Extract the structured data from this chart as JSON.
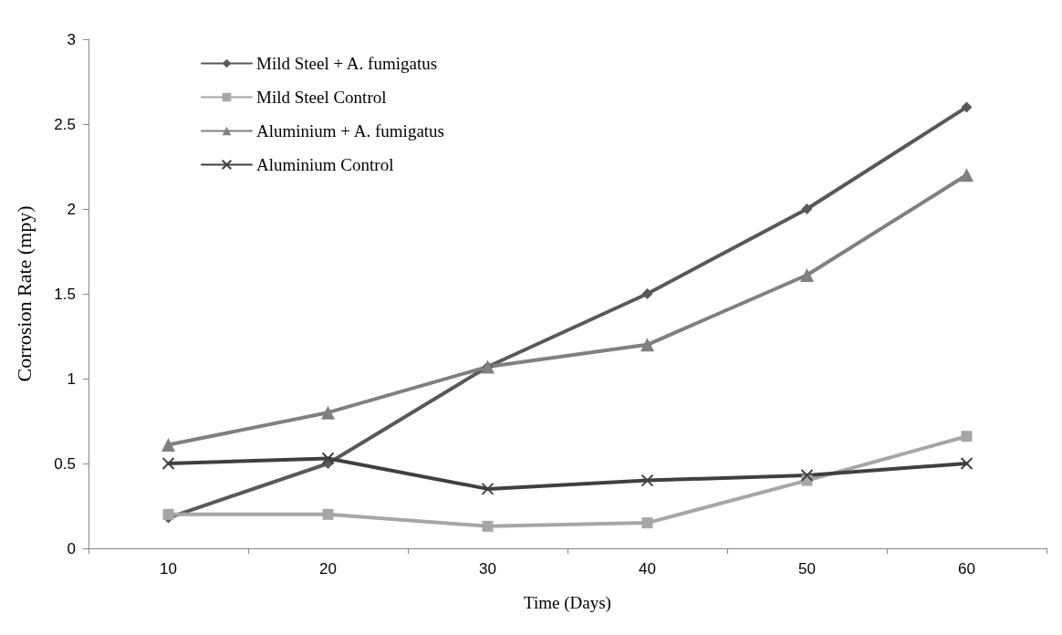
{
  "chart_data": {
    "type": "line",
    "xlabel": "Time (Days)",
    "ylabel": "Corrosion Rate (mpy)",
    "categories": [
      "10",
      "20",
      "30",
      "40",
      "50",
      "60"
    ],
    "ylim": [
      0,
      3
    ],
    "yticks": [
      0,
      0.5,
      1,
      1.5,
      2,
      2.5,
      3
    ],
    "grid": false,
    "legend": "top left",
    "line_style": "solid",
    "series": [
      {
        "name": "Mild Steel + A. fumigatus",
        "color": "#595959",
        "marker": "diamond",
        "values": [
          0.18,
          0.5,
          1.07,
          1.5,
          2.0,
          2.6
        ]
      },
      {
        "name": "Mild Steel Control",
        "color": "#a6a6a6",
        "marker": "square",
        "values": [
          0.2,
          0.2,
          0.13,
          0.15,
          0.4,
          0.66
        ]
      },
      {
        "name": "Aluminium + A. fumigatus",
        "color": "#808080",
        "marker": "triangle",
        "values": [
          0.61,
          0.8,
          1.07,
          1.2,
          1.61,
          2.2
        ]
      },
      {
        "name": "Aluminium Control",
        "color": "#404040",
        "marker": "cross",
        "values": [
          0.5,
          0.53,
          0.35,
          0.4,
          0.43,
          0.5
        ]
      }
    ]
  }
}
